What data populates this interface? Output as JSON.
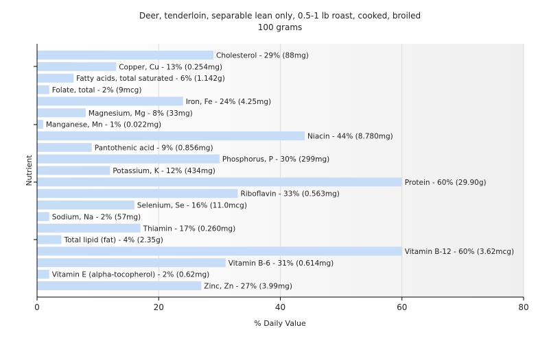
{
  "chart_data": {
    "type": "bar",
    "orientation": "horizontal",
    "title": "Deer, tenderloin, separable lean only, 0.5-1 lb roast, cooked, broiled",
    "subtitle": "100 grams",
    "xlabel": "% Daily Value",
    "ylabel": "Nutrient",
    "xlim": [
      0,
      80
    ],
    "xticks": [
      0,
      20,
      40,
      60,
      80
    ],
    "grid": true,
    "bar_color": "#c6dcf7",
    "categories": [
      "Cholesterol",
      "Copper, Cu",
      "Fatty acids, total saturated",
      "Folate, total",
      "Iron, Fe",
      "Magnesium, Mg",
      "Manganese, Mn",
      "Niacin",
      "Pantothenic acid",
      "Phosphorus, P",
      "Potassium, K",
      "Protein",
      "Riboflavin",
      "Selenium, Se",
      "Sodium, Na",
      "Thiamin",
      "Total lipid (fat)",
      "Vitamin B-12",
      "Vitamin B-6",
      "Vitamin E (alpha-tocopherol)",
      "Zinc, Zn"
    ],
    "values": [
      29,
      13,
      6,
      2,
      24,
      8,
      1,
      44,
      9,
      30,
      12,
      60,
      33,
      16,
      2,
      17,
      4,
      60,
      31,
      2,
      27
    ],
    "labels": [
      "Cholesterol - 29% (88mg)",
      "Copper, Cu - 13% (0.254mg)",
      "Fatty acids, total saturated - 6% (1.142g)",
      "Folate, total - 2% (9mcg)",
      "Iron, Fe - 24% (4.25mg)",
      "Magnesium, Mg - 8% (33mg)",
      "Manganese, Mn - 1% (0.022mg)",
      "Niacin - 44% (8.780mg)",
      "Pantothenic acid - 9% (0.856mg)",
      "Phosphorus, P - 30% (299mg)",
      "Potassium, K - 12% (434mg)",
      "Protein - 60% (29.90g)",
      "Riboflavin - 33% (0.563mg)",
      "Selenium, Se - 16% (11.0mcg)",
      "Sodium, Na - 2% (57mg)",
      "Thiamin - 17% (0.260mg)",
      "Total lipid (fat) - 4% (2.35g)",
      "Vitamin B-12 - 60% (3.62mcg)",
      "Vitamin B-6 - 31% (0.614mg)",
      "Vitamin E (alpha-tocopherol) - 2% (0.62mg)",
      "Zinc, Zn - 27% (3.99mg)"
    ]
  }
}
